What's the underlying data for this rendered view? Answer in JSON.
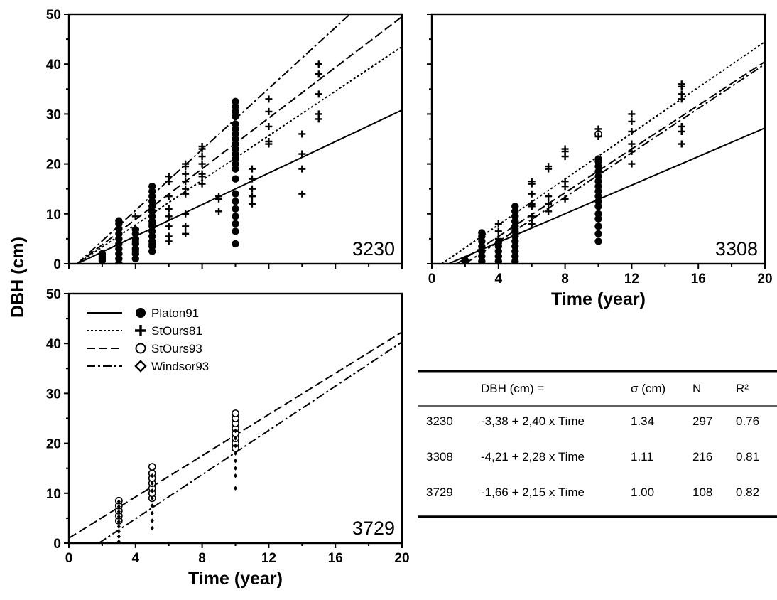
{
  "chart_data": {
    "type": "scatter",
    "ylabel": "DBH (cm)",
    "xlabel": "Time (year)",
    "legend": {
      "placement": "top-left of panel 3729",
      "entries": [
        {
          "name": "Platon91",
          "line": "solid",
          "marker": "filled-circle"
        },
        {
          "name": "StOurs81",
          "line": "dotted",
          "marker": "plus"
        },
        {
          "name": "StOurs93",
          "line": "dashed",
          "marker": "open-circle"
        },
        {
          "name": "Windsor93",
          "line": "dash-dot",
          "marker": "diamond"
        }
      ]
    },
    "panels": [
      {
        "id": "3230",
        "xlim": [
          0,
          20
        ],
        "ylim": [
          0,
          50
        ],
        "xticks": [
          0,
          4,
          8,
          12,
          16,
          20
        ],
        "yticks": [
          0,
          10,
          20,
          30,
          40,
          50
        ],
        "show_xtick_labels": false,
        "show_xlabel": false,
        "lines": [
          {
            "series": "Platon91",
            "style": "solid",
            "from": [
              0.5,
              0
            ],
            "to": [
              20,
              30.8
            ]
          },
          {
            "series": "StOurs81",
            "style": "dotted",
            "from": [
              0.5,
              0
            ],
            "to": [
              20,
              43.5
            ]
          },
          {
            "series": "StOurs93",
            "style": "dashed",
            "from": [
              0.5,
              0
            ],
            "to": [
              20,
              49.5
            ]
          },
          {
            "series": "Windsor93",
            "style": "dash-dot",
            "from": [
              0.5,
              0
            ],
            "to": [
              17.2,
              51
            ]
          }
        ],
        "points": [
          {
            "series": "Platon91",
            "marker": "filled-circle",
            "x": 2,
            "y": [
              0.6,
              1.0,
              1.4,
              1.8,
              2.0
            ]
          },
          {
            "series": "Platon91",
            "marker": "filled-circle",
            "x": 3,
            "y": [
              1.0,
              2.0,
              3.0,
              4.0,
              5.0,
              6.0,
              7.0,
              8.0,
              8.6
            ]
          },
          {
            "series": "Platon91",
            "marker": "filled-circle",
            "x": 4,
            "y": [
              1.0,
              2.0,
              3.0,
              4.0,
              5.0,
              6.0,
              6.8
            ]
          },
          {
            "series": "Platon91",
            "marker": "filled-circle",
            "x": 5,
            "y": [
              2.5,
              3.5,
              4.5,
              5.5,
              6.5,
              7.5,
              8.5,
              9.5,
              10.5,
              11.5,
              12.5,
              13.5,
              14.5,
              15.5
            ]
          },
          {
            "series": "Platon91",
            "marker": "filled-circle",
            "x": 10,
            "y": [
              4.0,
              6.5,
              8.0,
              9.5,
              11.0,
              12.5,
              14.0,
              17.0,
              19.0,
              20.0,
              21.0,
              22.0,
              23.0,
              24.0,
              25.0,
              26.0,
              27.0,
              28.0,
              29.5,
              30.5,
              31.5,
              32.5
            ]
          },
          {
            "series": "StOurs81",
            "marker": "plus",
            "x": 3,
            "y": [
              0.3,
              1.0,
              2.0
            ]
          },
          {
            "series": "StOurs81",
            "marker": "plus",
            "x": 4,
            "y": [
              2.5,
              4.5,
              7.0,
              9.5
            ]
          },
          {
            "series": "StOurs81",
            "marker": "plus",
            "x": 5,
            "y": [
              4.0,
              5.5,
              8.0,
              10.5
            ]
          },
          {
            "series": "StOurs81",
            "marker": "plus",
            "x": 6,
            "y": [
              4.5,
              5.5,
              7.5,
              9.5,
              11.0,
              13.5,
              16.5,
              17.5
            ]
          },
          {
            "series": "StOurs81",
            "marker": "plus",
            "x": 7,
            "y": [
              6.0,
              7.5,
              10.0,
              14.0,
              15.0,
              16.5,
              18.0,
              19.5,
              20.0
            ]
          },
          {
            "series": "StOurs81",
            "marker": "plus",
            "x": 8,
            "y": [
              16.0,
              17.5,
              18.0,
              20.0,
              21.5,
              23.0,
              23.5
            ]
          },
          {
            "series": "StOurs81",
            "marker": "plus",
            "x": 9,
            "y": [
              10.5,
              13.0,
              13.5
            ]
          },
          {
            "series": "StOurs81",
            "marker": "plus",
            "x": 11,
            "y": [
              12.0,
              13.5,
              15.0,
              17.0,
              19.0
            ]
          },
          {
            "series": "StOurs81",
            "marker": "plus",
            "x": 12,
            "y": [
              24.0,
              24.5,
              27.5,
              30.5,
              33.0
            ]
          },
          {
            "series": "StOurs81",
            "marker": "plus",
            "x": 14,
            "y": [
              14.0,
              19.0,
              22.0,
              26.0
            ]
          },
          {
            "series": "StOurs81",
            "marker": "plus",
            "x": 15,
            "y": [
              29.0,
              30.0,
              34.0,
              38.0,
              40.0
            ]
          },
          {
            "series": "Windsor93",
            "marker": "diamond",
            "x": 10,
            "y": [
              20.5,
              22.5
            ]
          }
        ]
      },
      {
        "id": "3308",
        "xlim": [
          0,
          20
        ],
        "ylim": [
          0,
          50
        ],
        "xticks": [
          0,
          4,
          8,
          12,
          16,
          20
        ],
        "yticks": [
          0,
          10,
          20,
          30,
          40,
          50
        ],
        "show_ytick_labels": false,
        "show_xtick_labels": true,
        "show_xlabel": true,
        "lines": [
          {
            "series": "Platon91",
            "style": "solid",
            "from": [
              1,
              0
            ],
            "to": [
              20,
              27.2
            ]
          },
          {
            "series": "StOurs81",
            "style": "dotted",
            "from": [
              0.6,
              0
            ],
            "to": [
              20,
              44.5
            ]
          },
          {
            "series": "StOurs93",
            "style": "dashed",
            "from": [
              1.5,
              0
            ],
            "to": [
              20,
              40.5
            ]
          },
          {
            "series": "Windsor93",
            "style": "dash-dot",
            "from": [
              2,
              0
            ],
            "to": [
              20,
              40
            ]
          }
        ],
        "points": [
          {
            "series": "Platon91",
            "marker": "filled-circle",
            "x": 2,
            "y": [
              0.3,
              0.7
            ]
          },
          {
            "series": "Platon91",
            "marker": "filled-circle",
            "x": 3,
            "y": [
              0.5,
              1.5,
              2.5,
              3.5,
              4.5,
              5.5,
              6.2
            ]
          },
          {
            "series": "Platon91",
            "marker": "filled-circle",
            "x": 4,
            "y": [
              0.5,
              1.5,
              2.5,
              3.5,
              4.2
            ]
          },
          {
            "series": "Platon91",
            "marker": "filled-circle",
            "x": 5,
            "y": [
              0.5,
              1.5,
              2.5,
              3.5,
              4.5,
              5.5,
              6.5,
              7.5,
              8.5,
              9.5,
              10.5,
              11.5
            ]
          },
          {
            "series": "Platon91",
            "marker": "filled-circle",
            "x": 10,
            "y": [
              4.5,
              6.0,
              7.5,
              9.0,
              10.0,
              11.5,
              12.5,
              13.5,
              14.5,
              15.5,
              16.5,
              17.5,
              18.5,
              19.5,
              20.5,
              21.0
            ]
          },
          {
            "series": "StOurs93",
            "marker": "open-circle",
            "x": 10,
            "y": [
              26.0
            ]
          },
          {
            "series": "StOurs81",
            "marker": "plus",
            "x": 3,
            "y": [
              0.5,
              1.5
            ]
          },
          {
            "series": "StOurs81",
            "marker": "plus",
            "x": 4,
            "y": [
              5.0,
              6.5,
              8.0
            ]
          },
          {
            "series": "StOurs81",
            "marker": "plus",
            "x": 5,
            "y": [
              7.0,
              8.5,
              9.5,
              10.5
            ]
          },
          {
            "series": "StOurs81",
            "marker": "plus",
            "x": 6,
            "y": [
              8.0,
              9.5,
              11.5,
              12.0,
              14.0,
              16.0,
              16.5
            ]
          },
          {
            "series": "StOurs81",
            "marker": "plus",
            "x": 7,
            "y": [
              10.5,
              12.0,
              13.5,
              19.0,
              19.5
            ]
          },
          {
            "series": "StOurs81",
            "marker": "plus",
            "x": 8,
            "y": [
              13.0,
              15.5,
              16.5,
              21.5,
              22.5,
              23.0
            ]
          },
          {
            "series": "StOurs81",
            "marker": "plus",
            "x": 10,
            "y": [
              25.5,
              27.0
            ]
          },
          {
            "series": "StOurs81",
            "marker": "plus",
            "x": 12,
            "y": [
              20.0,
              22.5,
              24.0,
              26.5,
              28.5,
              30.0
            ]
          },
          {
            "series": "StOurs81",
            "marker": "plus",
            "x": 15,
            "y": [
              24.0,
              26.5,
              27.5,
              33.0,
              34.0,
              35.5,
              36.0
            ]
          }
        ]
      },
      {
        "id": "3729",
        "xlim": [
          0,
          20
        ],
        "ylim": [
          0,
          50
        ],
        "xticks": [
          0,
          4,
          8,
          12,
          16,
          20
        ],
        "yticks": [
          0,
          10,
          20,
          30,
          40,
          50
        ],
        "show_xtick_labels": true,
        "show_xlabel": true,
        "lines": [
          {
            "series": "StOurs93",
            "style": "dashed",
            "from": [
              0,
              1.0
            ],
            "to": [
              20,
              42.3
            ]
          },
          {
            "series": "Windsor93",
            "style": "dash-dot",
            "from": [
              1.8,
              0
            ],
            "to": [
              20,
              40.3
            ]
          }
        ],
        "points": [
          {
            "series": "StOurs93",
            "marker": "open-circle",
            "x": 3,
            "y": [
              4.5,
              5.5,
              6.5,
              7.5,
              8.5
            ]
          },
          {
            "series": "StOurs93",
            "marker": "open-circle",
            "x": 5,
            "y": [
              9.0,
              10.0,
              11.0,
              12.0,
              13.0,
              14.0,
              15.3
            ]
          },
          {
            "series": "StOurs93",
            "marker": "open-circle",
            "x": 10,
            "y": [
              19.0,
              20.0,
              21.0,
              22.0,
              23.0,
              24.0,
              25.0,
              26.0
            ]
          },
          {
            "series": "Windsor93",
            "marker": "diamond",
            "x": 3,
            "y": [
              0.3,
              1.3,
              2.3,
              3.3,
              4.3,
              5.3,
              6.3,
              7.3,
              8.3
            ]
          },
          {
            "series": "Windsor93",
            "marker": "diamond",
            "x": 5,
            "y": [
              3.0,
              4.5,
              6.0,
              7.5,
              9.0,
              10.5,
              12.0,
              13.5
            ]
          },
          {
            "series": "Windsor93",
            "marker": "diamond",
            "x": 10,
            "y": [
              11.0,
              13.5,
              15.0,
              16.5,
              18.0,
              19.5,
              21.0,
              22.5
            ]
          }
        ]
      }
    ],
    "table": {
      "columns": [
        "",
        "DBH (cm) =",
        "σ (cm)",
        "N",
        "R²"
      ],
      "rows": [
        [
          "3230",
          "-3,38 + 2,40 x Time",
          "1.34",
          "297",
          "0.76"
        ],
        [
          "3308",
          "-4,21 + 2,28 x Time",
          "1.11",
          "216",
          "0.81"
        ],
        [
          "3729",
          "-1,66 + 2,15 x Time",
          "1.00",
          "108",
          "0.82"
        ]
      ]
    }
  }
}
